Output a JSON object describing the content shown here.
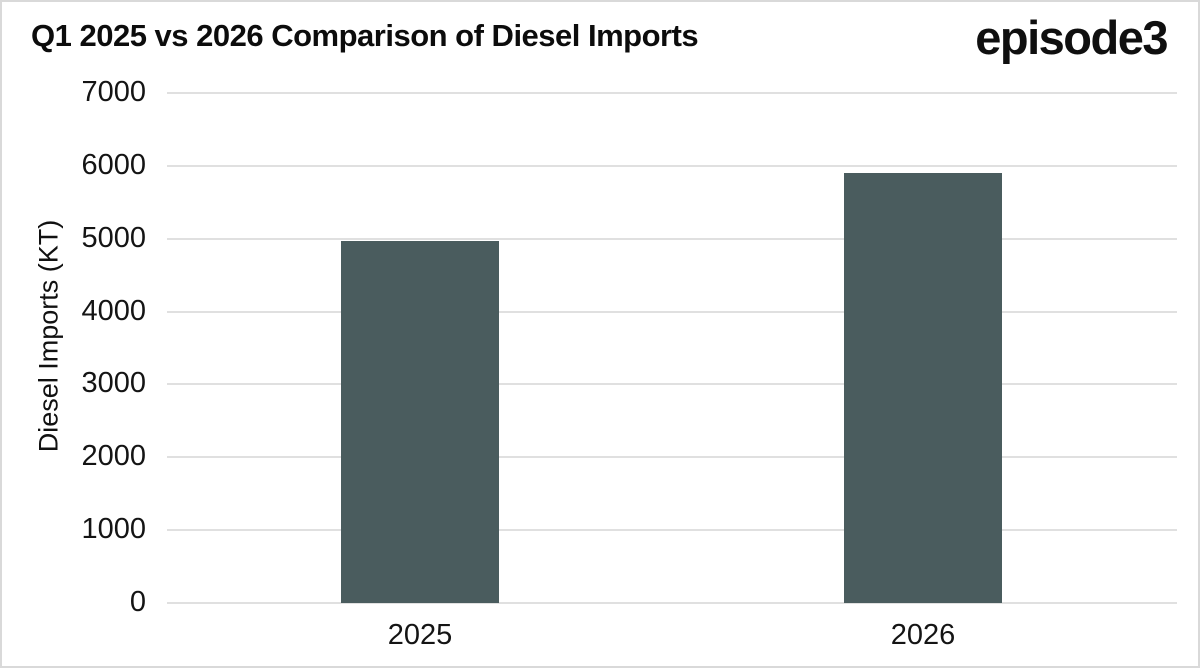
{
  "brand": {
    "text": "episode3"
  },
  "chart_data": {
    "type": "bar",
    "title": "Q1 2025 vs 2026 Comparison of Diesel Imports",
    "categories": [
      "2025",
      "2026"
    ],
    "values": [
      4970,
      5900
    ],
    "xlabel": "",
    "ylabel": "Diesel Imports (KT)",
    "ylim": [
      0,
      7000
    ],
    "yticks": [
      0,
      1000,
      2000,
      3000,
      4000,
      5000,
      6000,
      7000
    ],
    "grid": "horizontal",
    "legend": "none",
    "bar_color": "#4a5c5e",
    "gridline_color": "#e0e0e0",
    "text_color": "#141414",
    "background": "#ffffff"
  }
}
